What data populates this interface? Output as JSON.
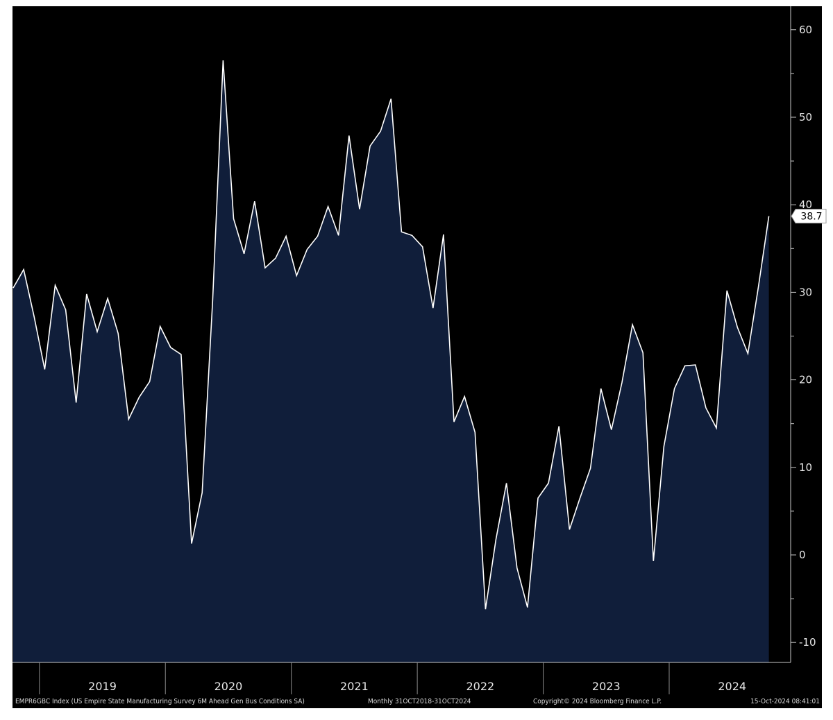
{
  "colors": {
    "background": "#000000",
    "area_fill": "#101e3a",
    "line": "#ffffff",
    "axis": "#c8c8c8",
    "text": "#e6e6e6",
    "label_box": "#ffffff"
  },
  "footer": {
    "ticker": "EMPR6GBC Index (US Empire State Manufacturing Survey 6M Ahead Gen Bus Conditions SA)",
    "range": "Monthly 31OCT2018-31OCT2024",
    "copyright": "Copyright© 2024 Bloomberg Finance L.P.",
    "timestamp": "15-Oct-2024 08:41:01"
  },
  "chart_data": {
    "type": "area",
    "title": "",
    "xlabel": "",
    "ylabel": "",
    "ylim": [
      -12,
      63
    ],
    "y_ticks": [
      60,
      50,
      40,
      30,
      20,
      10,
      0,
      -10
    ],
    "y_tick_labels": [
      "60",
      "50",
      "40",
      "30",
      "20",
      "10",
      "0",
      "-10"
    ],
    "x_years": [
      "2019",
      "2020",
      "2021",
      "2022",
      "2023",
      "2024"
    ],
    "last_value_label": "38.7",
    "grid": false,
    "legend": "none",
    "series": [
      {
        "x": [
          "2018-10",
          "2018-11",
          "2018-12",
          "2019-01",
          "2019-02",
          "2019-03",
          "2019-04",
          "2019-05",
          "2019-06",
          "2019-07",
          "2019-08",
          "2019-09",
          "2019-10",
          "2019-11",
          "2019-12",
          "2020-01",
          "2020-02",
          "2020-03",
          "2020-04",
          "2020-05",
          "2020-06",
          "2020-07",
          "2020-08",
          "2020-09",
          "2020-10",
          "2020-11",
          "2020-12",
          "2021-01",
          "2021-02",
          "2021-03",
          "2021-04",
          "2021-05",
          "2021-06",
          "2021-07",
          "2021-08",
          "2021-09",
          "2021-10",
          "2021-11",
          "2021-12",
          "2022-01",
          "2022-02",
          "2022-03",
          "2022-04",
          "2022-05",
          "2022-06",
          "2022-07",
          "2022-08",
          "2022-09",
          "2022-10",
          "2022-11",
          "2022-12",
          "2023-01",
          "2023-02",
          "2023-03",
          "2023-04",
          "2023-05",
          "2023-06",
          "2023-07",
          "2023-08",
          "2023-09",
          "2023-10",
          "2023-11",
          "2023-12",
          "2024-01",
          "2024-02",
          "2024-03",
          "2024-04",
          "2024-05",
          "2024-06",
          "2024-07",
          "2024-08",
          "2024-09",
          "2024-10"
        ],
        "y": [
          30.5,
          32.6,
          27.2,
          21.2,
          30.8,
          28.0,
          17.4,
          29.8,
          25.5,
          29.3,
          25.3,
          15.5,
          18.0,
          19.8,
          26.1,
          23.7,
          22.9,
          1.3,
          7.1,
          29.0,
          56.5,
          38.4,
          34.4,
          40.4,
          32.8,
          33.9,
          36.4,
          31.9,
          34.9,
          36.4,
          39.8,
          36.5,
          47.9,
          39.5,
          46.7,
          48.4,
          52.1,
          36.9,
          36.5,
          35.2,
          28.2,
          36.6,
          15.2,
          18.1,
          14.0,
          -6.2,
          1.8,
          8.2,
          -1.5,
          -6.0,
          6.5,
          8.2,
          14.7,
          2.9,
          6.5,
          9.9,
          19.0,
          14.3,
          19.7,
          26.3,
          23.1,
          -0.7,
          12.4,
          19.0,
          21.6,
          21.7,
          16.8,
          14.5,
          30.2,
          26.0,
          23.0,
          30.6,
          38.7
        ]
      }
    ]
  }
}
